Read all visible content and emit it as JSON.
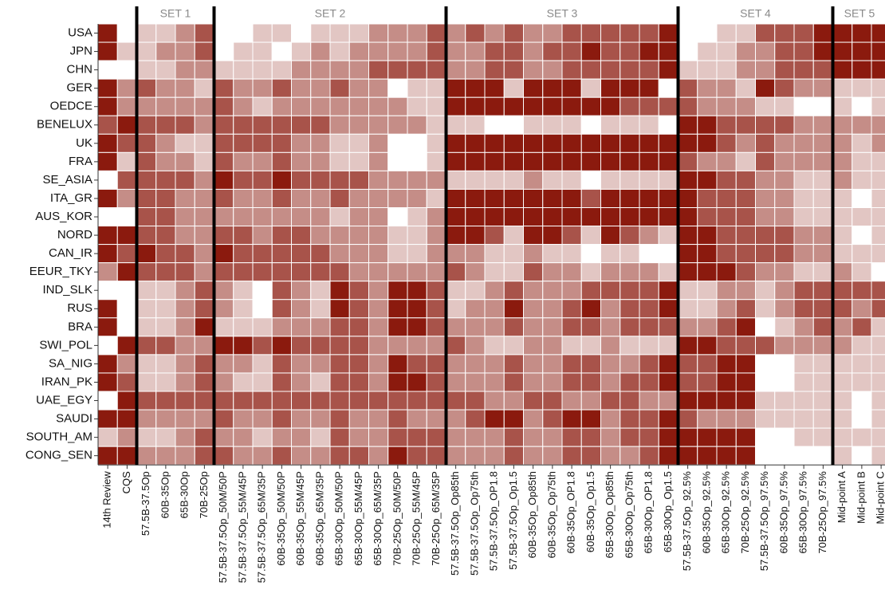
{
  "chart_data": {
    "type": "heatmap",
    "x_groups": [
      {
        "label": null,
        "categories": [
          "14th Review",
          "CQS"
        ]
      },
      {
        "label": "SET 1",
        "categories": [
          "57.5B-37.5Op",
          "60B-35Op",
          "65B-30Op",
          "70B-25Op"
        ]
      },
      {
        "label": "SET 2",
        "categories": [
          "57.5B-37.5Op_50M/50P",
          "57.5B-37.5Op_55M/45P",
          "57.5B-37.5Op_65M/35P",
          "60B-35Op_50M/50P",
          "60B-35Op_55M/45P",
          "60B-35Op_65M/35P",
          "65B-30Op_50M/50P",
          "65B-30Op_55M/45P",
          "65B-30Op_65M/35P",
          "70B-25Op_50M/50P",
          "70B-25Op_55M/45P",
          "70B-25Op_65M/35P"
        ]
      },
      {
        "label": "SET 3",
        "categories": [
          "57.5B-37.5Op_Op85th",
          "57.5B-37.5Op_Op75th",
          "57.5B-37.5Op_OP1.8",
          "57.5B-37.5Op_Op1.5",
          "60B-35Op_Op85th",
          "60B-35Op_Op75th",
          "60B-35Op_OP1.8",
          "60B-35Op_Op1.5",
          "65B-30Op_Op85th",
          "65B-30Op_Op75th",
          "65B-30Op_OP1.8",
          "65B-30Op_Op1.5"
        ]
      },
      {
        "label": "SET 4",
        "categories": [
          "57.5B-37.5Op_92.5%",
          "60B-35Op_92.5%",
          "65B-30Op_92.5%",
          "70B-25Op_92.5%",
          "57.5B-37.5Op_97.5%",
          "60B-35Op_97.5%",
          "65B-30Op_97.5%",
          "70B-25Op_97.5%"
        ]
      },
      {
        "label": "SET 5",
        "categories": [
          "Mid-point A",
          "Mid-point B",
          "Mid-point C"
        ]
      }
    ],
    "rows": [
      "USA",
      "JPN",
      "CHN",
      "GER",
      "OEDCE",
      "BENELUX",
      "UK",
      "FRA",
      "SE_ASIA",
      "ITA_GR",
      "AUS_KOR",
      "NORD",
      "CAN_IR",
      "EEUR_TKY",
      "IND_SLK",
      "RUS",
      "BRA",
      "SWI_POL",
      "SA_NIG",
      "IRAN_PK",
      "UAE_EGY",
      "SAUDI",
      "SOUTH_AM",
      "CONG_SEN"
    ],
    "values": [
      [
        4,
        0,
        1,
        1,
        2,
        3,
        0,
        0,
        1,
        1,
        0,
        1,
        1,
        1,
        2,
        2,
        2,
        3,
        2,
        3,
        2,
        3,
        2,
        2,
        3,
        3,
        3,
        3,
        3,
        4,
        0,
        0,
        1,
        1,
        3,
        3,
        3,
        4,
        4,
        4,
        4
      ],
      [
        4,
        1,
        1,
        2,
        2,
        3,
        0,
        1,
        1,
        0,
        1,
        2,
        1,
        2,
        2,
        2,
        2,
        3,
        2,
        2,
        3,
        3,
        2,
        3,
        3,
        4,
        3,
        3,
        4,
        4,
        0,
        1,
        1,
        2,
        2,
        3,
        3,
        4,
        4,
        4,
        4
      ],
      [
        0,
        0,
        1,
        1,
        2,
        2,
        1,
        1,
        1,
        1,
        2,
        2,
        2,
        2,
        3,
        3,
        3,
        3,
        2,
        2,
        3,
        3,
        2,
        2,
        3,
        3,
        3,
        3,
        3,
        4,
        1,
        1,
        1,
        2,
        2,
        3,
        3,
        3,
        4,
        4,
        4
      ],
      [
        4,
        2,
        3,
        2,
        2,
        1,
        3,
        2,
        2,
        3,
        2,
        2,
        3,
        2,
        2,
        0,
        1,
        1,
        4,
        4,
        4,
        1,
        4,
        4,
        4,
        1,
        4,
        4,
        4,
        0,
        3,
        2,
        2,
        1,
        4,
        3,
        2,
        2,
        1,
        1,
        1
      ],
      [
        4,
        2,
        2,
        2,
        2,
        2,
        3,
        2,
        1,
        2,
        2,
        2,
        2,
        2,
        2,
        2,
        1,
        1,
        4,
        4,
        4,
        4,
        4,
        4,
        4,
        4,
        4,
        3,
        3,
        3,
        3,
        2,
        2,
        2,
        1,
        1,
        0,
        0,
        1,
        0,
        1
      ],
      [
        3,
        4,
        3,
        3,
        3,
        2,
        3,
        3,
        3,
        3,
        3,
        3,
        2,
        2,
        2,
        2,
        2,
        1,
        1,
        1,
        0,
        0,
        1,
        1,
        1,
        0,
        1,
        1,
        1,
        0,
        4,
        4,
        3,
        3,
        3,
        3,
        2,
        2,
        2,
        2,
        2
      ],
      [
        4,
        3,
        3,
        2,
        1,
        1,
        3,
        3,
        3,
        3,
        2,
        2,
        1,
        1,
        2,
        0,
        0,
        1,
        4,
        4,
        4,
        4,
        4,
        4,
        4,
        4,
        4,
        4,
        4,
        4,
        4,
        4,
        3,
        2,
        3,
        2,
        2,
        2,
        2,
        1,
        2
      ],
      [
        4,
        1,
        3,
        2,
        2,
        1,
        3,
        2,
        2,
        3,
        2,
        2,
        1,
        1,
        2,
        0,
        0,
        1,
        4,
        4,
        4,
        4,
        4,
        4,
        4,
        4,
        4,
        4,
        4,
        4,
        3,
        2,
        2,
        1,
        3,
        2,
        2,
        2,
        2,
        1,
        1
      ],
      [
        0,
        3,
        3,
        3,
        3,
        2,
        4,
        3,
        3,
        4,
        3,
        3,
        3,
        3,
        2,
        2,
        2,
        2,
        1,
        1,
        1,
        1,
        2,
        1,
        1,
        0,
        1,
        1,
        1,
        1,
        4,
        4,
        3,
        3,
        2,
        2,
        1,
        1,
        2,
        1,
        1
      ],
      [
        4,
        2,
        3,
        3,
        2,
        2,
        3,
        2,
        2,
        3,
        2,
        2,
        3,
        2,
        2,
        2,
        2,
        1,
        4,
        4,
        4,
        4,
        4,
        4,
        4,
        3,
        4,
        4,
        4,
        4,
        4,
        3,
        3,
        3,
        2,
        2,
        1,
        1,
        1,
        0,
        1
      ],
      [
        0,
        0,
        3,
        3,
        2,
        2,
        2,
        2,
        2,
        2,
        2,
        2,
        1,
        2,
        2,
        0,
        1,
        2,
        4,
        4,
        4,
        4,
        4,
        4,
        4,
        4,
        4,
        4,
        4,
        4,
        4,
        3,
        3,
        3,
        2,
        2,
        1,
        1,
        1,
        1,
        1
      ],
      [
        4,
        4,
        3,
        3,
        2,
        2,
        3,
        3,
        2,
        3,
        3,
        2,
        2,
        2,
        2,
        1,
        1,
        2,
        4,
        4,
        3,
        1,
        4,
        4,
        3,
        1,
        4,
        3,
        2,
        1,
        4,
        4,
        3,
        3,
        3,
        3,
        2,
        2,
        1,
        0,
        1
      ],
      [
        4,
        3,
        4,
        3,
        3,
        2,
        4,
        3,
        3,
        3,
        3,
        3,
        2,
        2,
        2,
        1,
        1,
        2,
        2,
        2,
        1,
        1,
        2,
        1,
        1,
        0,
        1,
        1,
        0,
        0,
        4,
        4,
        3,
        3,
        3,
        3,
        2,
        2,
        1,
        1,
        1
      ],
      [
        2,
        4,
        3,
        3,
        3,
        2,
        3,
        3,
        3,
        3,
        3,
        3,
        3,
        2,
        2,
        2,
        2,
        2,
        3,
        2,
        1,
        1,
        3,
        2,
        2,
        1,
        2,
        2,
        2,
        1,
        4,
        4,
        4,
        3,
        2,
        2,
        1,
        1,
        2,
        1,
        0
      ],
      [
        0,
        0,
        1,
        1,
        2,
        3,
        2,
        1,
        0,
        3,
        2,
        1,
        4,
        3,
        2,
        4,
        4,
        3,
        1,
        1,
        2,
        3,
        2,
        2,
        2,
        3,
        3,
        3,
        3,
        4,
        1,
        1,
        2,
        2,
        1,
        2,
        3,
        3,
        3,
        3,
        3
      ],
      [
        4,
        0,
        1,
        1,
        2,
        3,
        2,
        1,
        0,
        3,
        2,
        1,
        4,
        3,
        2,
        4,
        4,
        3,
        1,
        2,
        2,
        4,
        2,
        2,
        3,
        4,
        2,
        3,
        3,
        4,
        1,
        1,
        2,
        3,
        1,
        2,
        3,
        3,
        3,
        2,
        3
      ],
      [
        4,
        0,
        1,
        1,
        2,
        4,
        1,
        1,
        1,
        2,
        2,
        2,
        3,
        3,
        2,
        4,
        4,
        3,
        2,
        2,
        2,
        3,
        2,
        2,
        3,
        3,
        2,
        3,
        3,
        3,
        2,
        2,
        3,
        4,
        0,
        1,
        2,
        3,
        2,
        3,
        1
      ],
      [
        0,
        4,
        3,
        3,
        2,
        2,
        4,
        4,
        3,
        4,
        3,
        3,
        3,
        3,
        2,
        2,
        2,
        2,
        3,
        2,
        1,
        1,
        2,
        2,
        1,
        1,
        2,
        1,
        1,
        1,
        4,
        4,
        3,
        3,
        3,
        2,
        2,
        2,
        2,
        1,
        1
      ],
      [
        4,
        2,
        1,
        1,
        2,
        3,
        2,
        2,
        1,
        3,
        2,
        2,
        3,
        3,
        2,
        4,
        3,
        3,
        2,
        2,
        2,
        3,
        2,
        2,
        3,
        3,
        2,
        2,
        3,
        4,
        3,
        3,
        4,
        4,
        0,
        0,
        1,
        1,
        1,
        1,
        1
      ],
      [
        4,
        3,
        1,
        1,
        2,
        3,
        2,
        1,
        1,
        3,
        2,
        1,
        3,
        3,
        2,
        4,
        4,
        3,
        2,
        2,
        2,
        3,
        2,
        2,
        3,
        3,
        2,
        3,
        3,
        4,
        3,
        3,
        4,
        4,
        0,
        0,
        1,
        1,
        1,
        1,
        1
      ],
      [
        0,
        4,
        3,
        3,
        3,
        3,
        3,
        3,
        3,
        3,
        3,
        3,
        3,
        3,
        3,
        3,
        3,
        3,
        3,
        3,
        2,
        2,
        3,
        3,
        2,
        2,
        3,
        3,
        2,
        2,
        4,
        4,
        4,
        4,
        1,
        1,
        1,
        1,
        1,
        0,
        1
      ],
      [
        4,
        4,
        2,
        2,
        2,
        2,
        3,
        2,
        2,
        3,
        2,
        2,
        3,
        2,
        2,
        3,
        2,
        2,
        2,
        3,
        4,
        4,
        2,
        3,
        4,
        4,
        2,
        3,
        3,
        4,
        3,
        2,
        2,
        2,
        1,
        1,
        1,
        1,
        1,
        0,
        1
      ],
      [
        1,
        2,
        1,
        1,
        2,
        3,
        2,
        2,
        1,
        2,
        2,
        1,
        3,
        2,
        2,
        3,
        3,
        3,
        2,
        2,
        2,
        3,
        2,
        2,
        3,
        3,
        2,
        3,
        3,
        4,
        4,
        4,
        4,
        4,
        0,
        0,
        1,
        1,
        1,
        1,
        1
      ],
      [
        4,
        4,
        2,
        2,
        2,
        3,
        3,
        2,
        2,
        3,
        2,
        2,
        3,
        3,
        2,
        4,
        3,
        3,
        2,
        2,
        2,
        3,
        2,
        2,
        3,
        3,
        2,
        2,
        3,
        4,
        4,
        4,
        4,
        4,
        0,
        0,
        0,
        0,
        1,
        0,
        1
      ]
    ],
    "clim": [
      0,
      4
    ],
    "colors": [
      "#ffffff",
      "#8b1a0e"
    ]
  }
}
